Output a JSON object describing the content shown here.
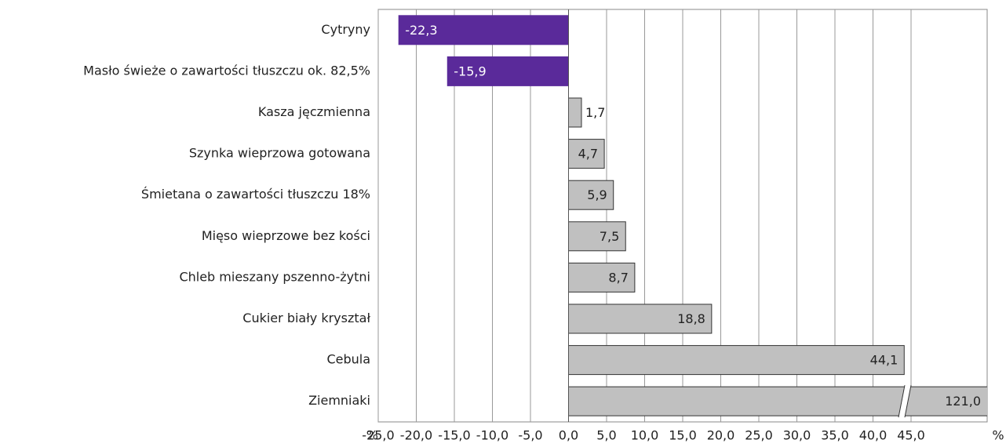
{
  "chart_data": {
    "type": "bar",
    "orientation": "horizontal",
    "categories": [
      "Cytryny",
      "Masło świeże o zawartości tłuszczu ok. 82,5%",
      "Kasza jęczmienna",
      "Szynka wieprzowa gotowana",
      "Śmietana o zawartości tłuszczu 18%",
      "Mięso wieprzowe bez kości",
      "Chleb mieszany pszenno-żytni",
      "Cukier biały kryształ",
      "Cebula",
      "Ziemniaki"
    ],
    "values": [
      -22.3,
      -15.9,
      1.7,
      4.7,
      5.9,
      7.5,
      8.7,
      18.8,
      44.1,
      121.0
    ],
    "value_labels": [
      "-22,3",
      "-15,9",
      "1,7",
      "4,7",
      "5,9",
      "7,5",
      "8,7",
      "18,8",
      "44,1",
      "121,0"
    ],
    "color_negative": "#5a2a9a",
    "color_positive": "#c0c0c0",
    "xlim": [
      -25,
      55
    ],
    "xticks": [
      {
        "value": -25,
        "label": "-25,0"
      },
      {
        "value": -20,
        "label": "-20,0"
      },
      {
        "value": -15,
        "label": "-15,0"
      },
      {
        "value": -10,
        "label": "-10,0"
      },
      {
        "value": -5,
        "label": "-5,0"
      },
      {
        "value": 0,
        "label": "0,0"
      },
      {
        "value": 5,
        "label": "5,0"
      },
      {
        "value": 10,
        "label": "10,0"
      },
      {
        "value": 15,
        "label": "15,0"
      },
      {
        "value": 20,
        "label": "20,0"
      },
      {
        "value": 25,
        "label": "25,0"
      },
      {
        "value": 30,
        "label": "30,0"
      },
      {
        "value": 35,
        "label": "35,0"
      },
      {
        "value": 40,
        "label": "40,0"
      },
      {
        "value": 45,
        "label": "45,0"
      }
    ],
    "xlabel_left": "%",
    "xlabel_right": "%",
    "grid": true,
    "axis_break": true
  }
}
